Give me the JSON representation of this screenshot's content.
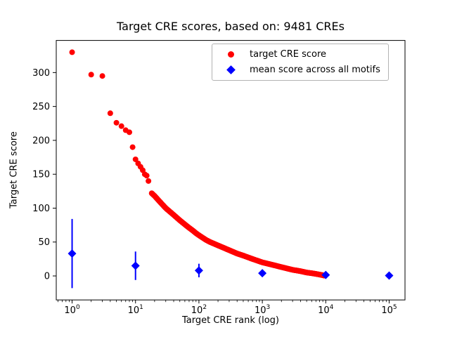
{
  "chart_data": {
    "type": "scatter",
    "title": "Target CRE scores, based on: 9481 CREs",
    "xlabel": "Target CRE rank (log)",
    "ylabel": "Target CRE score",
    "x_scale": "log",
    "xlog_lim": [
      -0.25,
      5.25
    ],
    "ylim": [
      -35.4,
      347.4
    ],
    "y_ticks": [
      0,
      50,
      100,
      150,
      200,
      250,
      300
    ],
    "x_ticks_exponents": [
      0,
      1,
      2,
      3,
      4,
      5
    ],
    "grid": false,
    "legend_position": "upper right",
    "legend": [
      {
        "label": "target CRE score",
        "marker": "circle",
        "color": "#ff0000"
      },
      {
        "label": "mean score across all motifs",
        "marker": "diamond",
        "color": "#0000ff"
      }
    ],
    "series_red": {
      "name": "target CRE score",
      "color": "#ff0000",
      "note": "9481 ranked CREs; anchor points read from plot, dense tail shown by interpolation",
      "interpolate_from_rank": 17,
      "points": [
        [
          1,
          330
        ],
        [
          2,
          297
        ],
        [
          3,
          295
        ],
        [
          4,
          240
        ],
        [
          5,
          226
        ],
        [
          6,
          221
        ],
        [
          7,
          215
        ],
        [
          8,
          212
        ],
        [
          9,
          190
        ],
        [
          10,
          172
        ],
        [
          11,
          166
        ],
        [
          12,
          161
        ],
        [
          13,
          156
        ],
        [
          14,
          150
        ],
        [
          15,
          148
        ],
        [
          16,
          140
        ],
        [
          18,
          122
        ],
        [
          20,
          118
        ],
        [
          25,
          108
        ],
        [
          30,
          100
        ],
        [
          40,
          90
        ],
        [
          50,
          82
        ],
        [
          60,
          76
        ],
        [
          70,
          71
        ],
        [
          80,
          67
        ],
        [
          90,
          63
        ],
        [
          100,
          60
        ],
        [
          130,
          53
        ],
        [
          150,
          50
        ],
        [
          200,
          45
        ],
        [
          300,
          38
        ],
        [
          400,
          33
        ],
        [
          500,
          30
        ],
        [
          700,
          25
        ],
        [
          1000,
          20
        ],
        [
          1500,
          16
        ],
        [
          2000,
          13
        ],
        [
          3000,
          9
        ],
        [
          4000,
          7
        ],
        [
          5000,
          5
        ],
        [
          6000,
          4
        ],
        [
          7000,
          3
        ],
        [
          8000,
          2
        ],
        [
          9000,
          1
        ],
        [
          9481,
          0.5
        ]
      ]
    },
    "series_blue": {
      "name": "mean score across all motifs",
      "color": "#0000ff",
      "points": [
        {
          "x": 1,
          "y": 33,
          "yerr": 51
        },
        {
          "x": 10,
          "y": 15,
          "yerr": 21
        },
        {
          "x": 100,
          "y": 8,
          "yerr": 10
        },
        {
          "x": 1000,
          "y": 4,
          "yerr": 4
        },
        {
          "x": 10000,
          "y": 1.5,
          "yerr": 2.5
        },
        {
          "x": 100000,
          "y": 0.5,
          "yerr": 0.8
        }
      ]
    }
  }
}
